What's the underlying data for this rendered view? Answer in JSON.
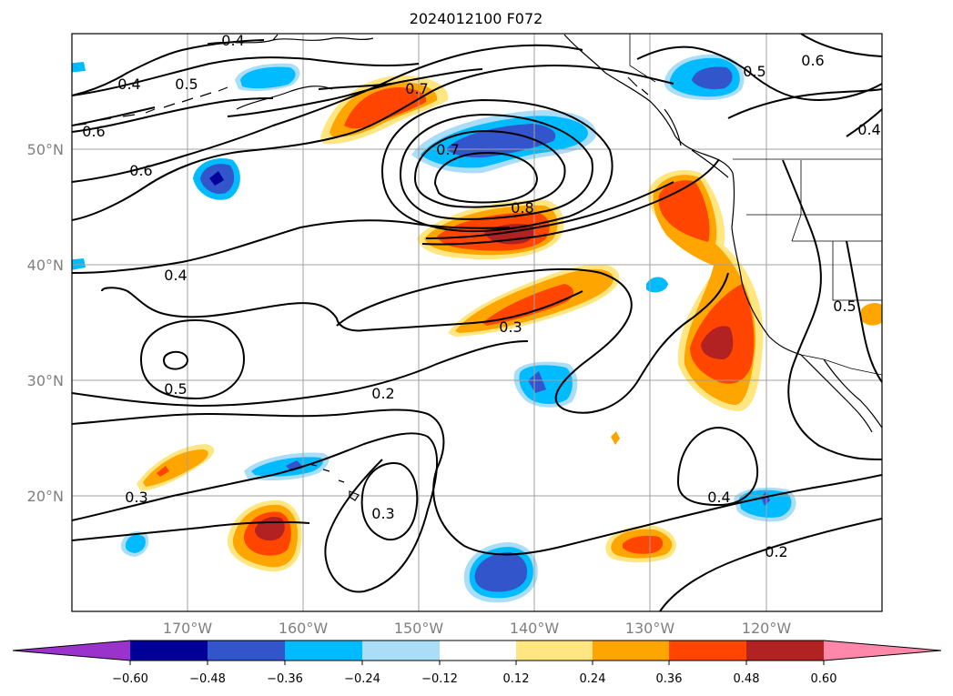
{
  "title": "2024012100 F072",
  "map": {
    "lon_range": [
      -180,
      -110
    ],
    "lat_range": [
      10,
      60
    ],
    "lat_ticks": [
      "20°N",
      "30°N",
      "40°N",
      "50°N"
    ],
    "lon_ticks": [
      "170°W",
      "160°W",
      "150°W",
      "140°W",
      "130°W",
      "120°W"
    ],
    "grid": true
  },
  "contour_labels": [
    "0.4",
    "0.4",
    "0.5",
    "0.7",
    "0.6",
    "0.6",
    "0.7",
    "0.8",
    "0.4",
    "0.3",
    "0.5",
    "0.2",
    "0.3",
    "0.3",
    "0.4",
    "0.2",
    "0.5",
    "0.6",
    "0.4",
    "0.5"
  ],
  "colorbar": {
    "labels": [
      "−0.60",
      "−0.48",
      "−0.36",
      "−0.24",
      "−0.12",
      "0.12",
      "0.24",
      "0.36",
      "0.48",
      "0.60"
    ],
    "colors": [
      "#9933cc",
      "#000099",
      "#3355cc",
      "#00bbff",
      "#aaddf7",
      "#ffffff",
      "#ffe680",
      "#ffa500",
      "#ff4500",
      "#b22222",
      "#ff88aa"
    ],
    "extend": "both"
  }
}
